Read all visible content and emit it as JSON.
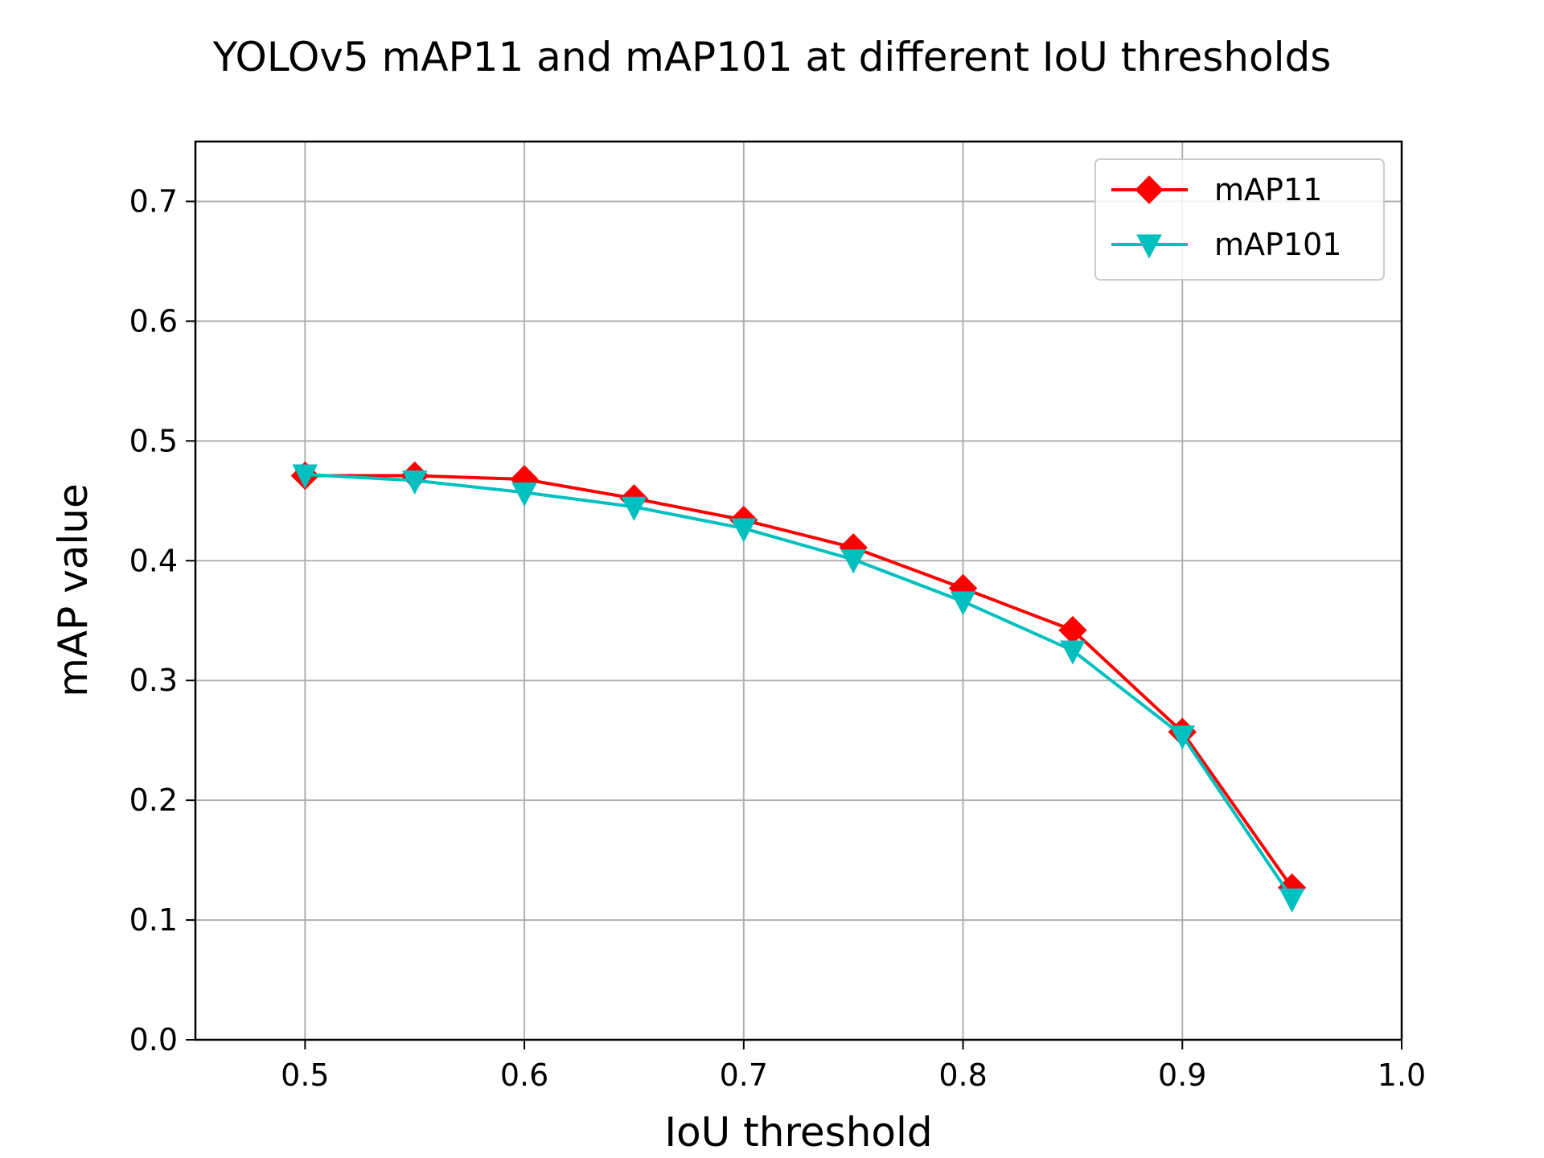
{
  "chart_data": {
    "type": "line",
    "title": "YOLOv5 mAP11 and mAP101 at different IoU thresholds",
    "xlabel": "IoU threshold",
    "ylabel": "mAP value",
    "xlim": [
      0.45,
      1.0
    ],
    "ylim": [
      0.0,
      0.75
    ],
    "xticks": [
      "0.5",
      "0.6",
      "0.7",
      "0.8",
      "0.9",
      "1.0"
    ],
    "yticks": [
      "0.0",
      "0.1",
      "0.2",
      "0.3",
      "0.4",
      "0.5",
      "0.6",
      "0.7"
    ],
    "grid": true,
    "legend_position": "top-right",
    "x": [
      0.5,
      0.55,
      0.6,
      0.65,
      0.7,
      0.75,
      0.8,
      0.85,
      0.9,
      0.95
    ],
    "series": [
      {
        "name": "mAP11",
        "color": "#ff0000",
        "marker": "diamond",
        "values": [
          0.471,
          0.471,
          0.468,
          0.452,
          0.434,
          0.411,
          0.377,
          0.342,
          0.257,
          0.127
        ]
      },
      {
        "name": "mAP101",
        "color": "#00bfbf",
        "marker": "triangle-down",
        "values": [
          0.472,
          0.467,
          0.457,
          0.445,
          0.427,
          0.401,
          0.366,
          0.325,
          0.254,
          0.118
        ]
      }
    ]
  }
}
